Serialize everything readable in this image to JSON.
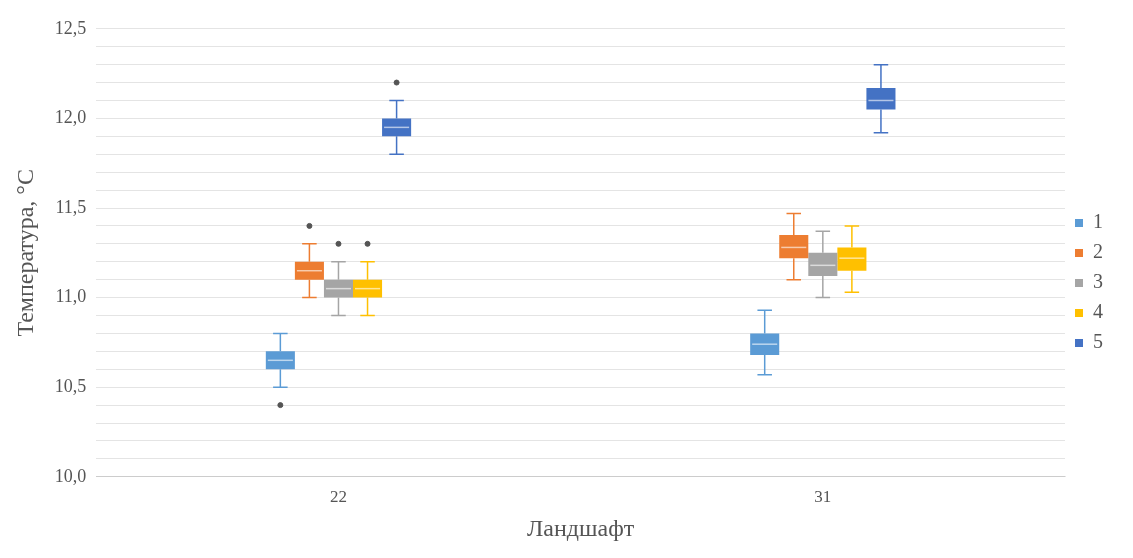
{
  "chart_data": {
    "type": "box",
    "xlabel": "Ландшафт",
    "ylabel": "Температура, °C",
    "categories": [
      "22",
      "31"
    ],
    "ylim": [
      10.0,
      12.5
    ],
    "yticks": [
      {
        "value": 10.0,
        "label": "10,0"
      },
      {
        "value": 10.1,
        "label": null
      },
      {
        "value": 10.2,
        "label": null
      },
      {
        "value": 10.3,
        "label": null
      },
      {
        "value": 10.4,
        "label": null
      },
      {
        "value": 10.5,
        "label": "10,5"
      },
      {
        "value": 10.6,
        "label": null
      },
      {
        "value": 10.7,
        "label": null
      },
      {
        "value": 10.8,
        "label": null
      },
      {
        "value": 10.9,
        "label": null
      },
      {
        "value": 11.0,
        "label": "11,0"
      },
      {
        "value": 11.1,
        "label": null
      },
      {
        "value": 11.2,
        "label": null
      },
      {
        "value": 11.3,
        "label": null
      },
      {
        "value": 11.4,
        "label": null
      },
      {
        "value": 11.5,
        "label": "11,5"
      },
      {
        "value": 11.6,
        "label": null
      },
      {
        "value": 11.7,
        "label": null
      },
      {
        "value": 11.8,
        "label": null
      },
      {
        "value": 11.9,
        "label": null
      },
      {
        "value": 12.0,
        "label": "12,0"
      },
      {
        "value": 12.1,
        "label": null
      },
      {
        "value": 12.2,
        "label": null
      },
      {
        "value": 12.3,
        "label": null
      },
      {
        "value": 12.4,
        "label": null
      },
      {
        "value": 12.5,
        "label": "12,5"
      }
    ],
    "grid": "y",
    "legend": "right",
    "series": [
      {
        "name": "1",
        "color": "#5b9bd5",
        "boxes": [
          {
            "low": 10.5,
            "q1": 10.6,
            "median": 10.65,
            "q3": 10.7,
            "high": 10.8,
            "outliers": [
              10.4
            ]
          },
          {
            "low": 10.57,
            "q1": 10.68,
            "median": 10.74,
            "q3": 10.8,
            "high": 10.93
          }
        ]
      },
      {
        "name": "2",
        "color": "#ed7d31",
        "boxes": [
          {
            "low": 11.0,
            "q1": 11.1,
            "median": 11.15,
            "q3": 11.2,
            "high": 11.3,
            "outliers": [
              11.4
            ]
          },
          {
            "low": 11.1,
            "q1": 11.22,
            "median": 11.28,
            "q3": 11.35,
            "high": 11.47
          }
        ]
      },
      {
        "name": "3",
        "color": "#a5a5a5",
        "boxes": [
          {
            "low": 10.9,
            "q1": 11.0,
            "median": 11.05,
            "q3": 11.1,
            "high": 11.2,
            "outliers": [
              11.3
            ]
          },
          {
            "low": 11.0,
            "q1": 11.12,
            "median": 11.18,
            "q3": 11.25,
            "high": 11.37
          }
        ]
      },
      {
        "name": "4",
        "color": "#ffc000",
        "boxes": [
          {
            "low": 10.9,
            "q1": 11.0,
            "median": 11.05,
            "q3": 11.1,
            "high": 11.2,
            "outliers": [
              11.3
            ]
          },
          {
            "low": 11.03,
            "q1": 11.15,
            "median": 11.22,
            "q3": 11.28,
            "high": 11.4
          }
        ]
      },
      {
        "name": "5",
        "color": "#4472c4",
        "boxes": [
          {
            "low": 11.8,
            "q1": 11.9,
            "median": 11.95,
            "q3": 12.0,
            "high": 12.1,
            "outliers": [
              12.2
            ]
          },
          {
            "low": 11.92,
            "q1": 12.05,
            "median": 12.1,
            "q3": 12.17,
            "high": 12.3
          }
        ]
      }
    ]
  }
}
